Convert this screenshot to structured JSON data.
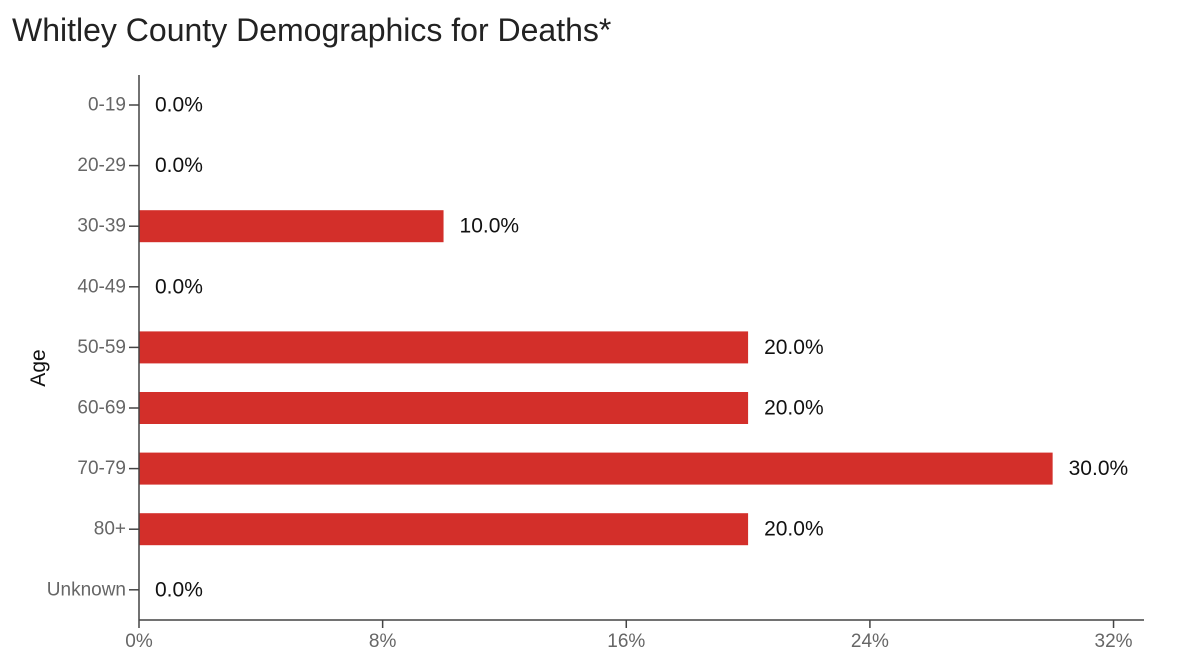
{
  "chart_data": {
    "type": "bar",
    "orientation": "horizontal",
    "title": "Whitley County Demographics for Deaths*",
    "ylabel": "Age",
    "xlabel": "",
    "categories": [
      "0-19",
      "20-29",
      "30-39",
      "40-49",
      "50-59",
      "60-69",
      "70-79",
      "80+",
      "Unknown"
    ],
    "values": [
      0,
      0,
      10,
      0,
      20,
      20,
      30,
      20,
      0
    ],
    "data_labels": [
      "0.0%",
      "0.0%",
      "10.0%",
      "0.0%",
      "20.0%",
      "20.0%",
      "30.0%",
      "20.0%",
      "0.0%"
    ],
    "xlim": [
      0,
      33
    ],
    "x_ticks": [
      0,
      8,
      16,
      24,
      32
    ],
    "x_tick_labels": [
      "0%",
      "8%",
      "16%",
      "24%",
      "32%"
    ],
    "bar_color": "#d32f2a",
    "axis_color": "#444444",
    "grid": false,
    "legend": "none"
  }
}
